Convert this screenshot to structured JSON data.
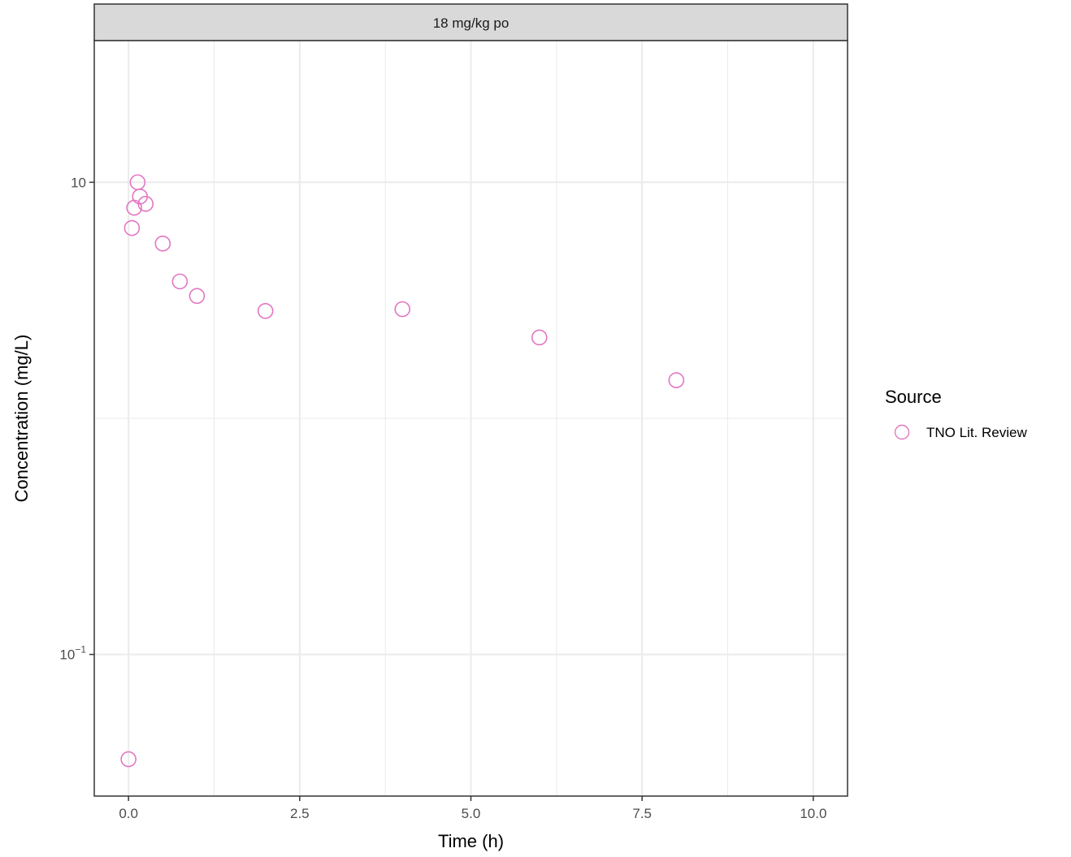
{
  "chart_data": {
    "type": "scatter",
    "panel_title": "18 mg/kg po",
    "xlabel": "Time (h)",
    "ylabel": "Concentration (mg/L)",
    "x_scale": "linear",
    "y_scale": "log10",
    "xlim": [
      -0.5,
      10.5
    ],
    "ylim_log10": [
      -1.6,
      1.6
    ],
    "x_ticks": [
      0,
      2.5,
      5,
      7.5,
      10
    ],
    "x_tick_labels": [
      "0.0",
      "2.5",
      "5.0",
      "7.5",
      "10.0"
    ],
    "y_ticks": [
      {
        "value": 10,
        "base": "10",
        "exponent": ""
      },
      {
        "value": 0.1,
        "base": "10",
        "exponent": "−1"
      }
    ],
    "grid": true,
    "legend": {
      "title": "Source",
      "position": "right",
      "entries": [
        {
          "label": "TNO Lit. Review",
          "color": "#e377c2",
          "marker": "open-circle"
        }
      ]
    },
    "series": [
      {
        "name": "TNO Lit. Review",
        "color": "#e377c2",
        "points": [
          {
            "x": 0.0,
            "y": 0.036
          },
          {
            "x": 0.05,
            "y": 6.4
          },
          {
            "x": 0.083,
            "y": 7.8
          },
          {
            "x": 0.133,
            "y": 10.0
          },
          {
            "x": 0.167,
            "y": 8.7
          },
          {
            "x": 0.25,
            "y": 8.1
          },
          {
            "x": 0.5,
            "y": 5.5
          },
          {
            "x": 0.75,
            "y": 3.8
          },
          {
            "x": 1.0,
            "y": 3.3
          },
          {
            "x": 2.0,
            "y": 2.85
          },
          {
            "x": 4.0,
            "y": 2.9
          },
          {
            "x": 6.0,
            "y": 2.2
          },
          {
            "x": 8.0,
            "y": 1.45
          }
        ]
      }
    ]
  }
}
